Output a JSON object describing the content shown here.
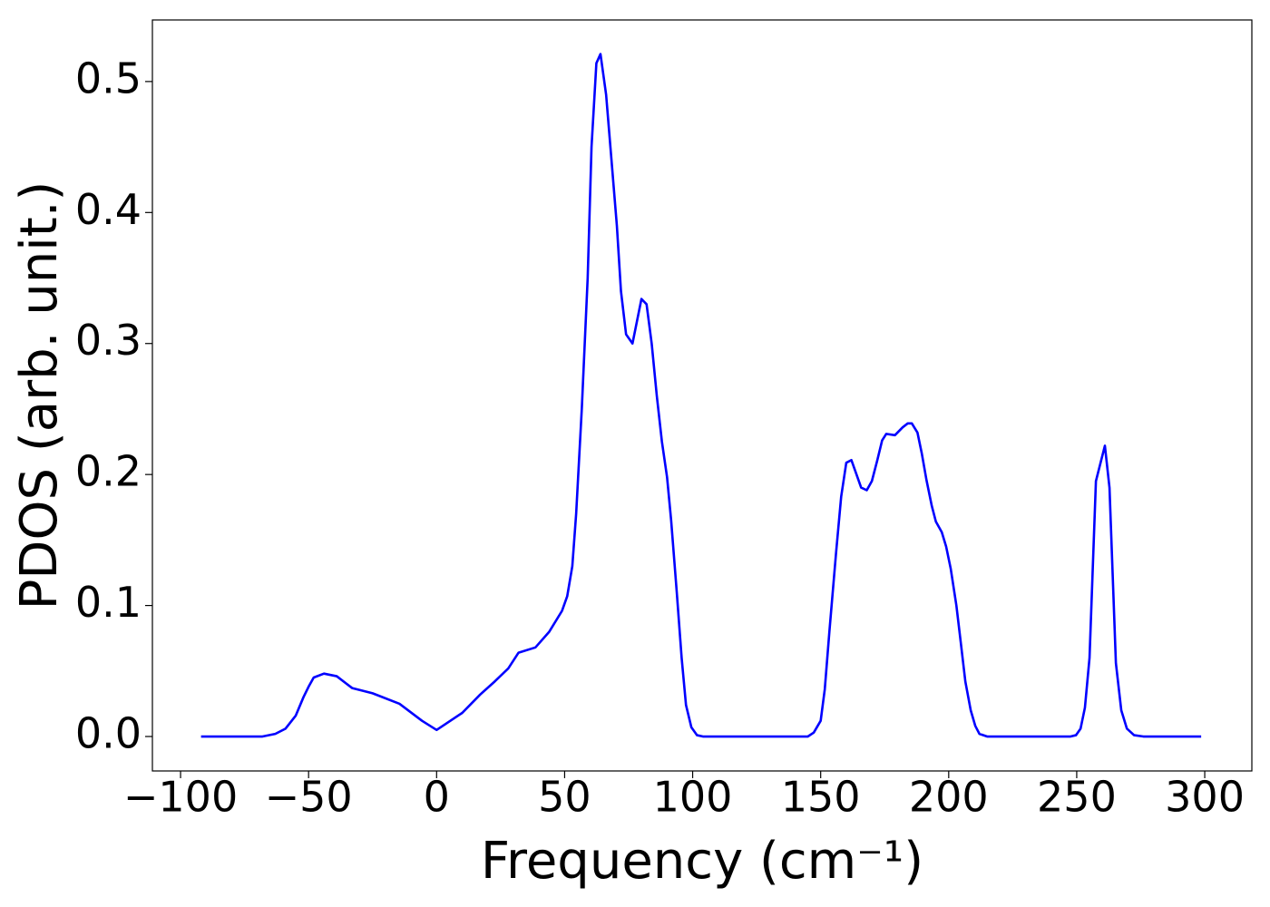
{
  "chart_data": {
    "type": "line",
    "xlabel": "Frequency (cm⁻¹)",
    "ylabel": "PDOS (arb. unit.)",
    "x": [
      -92,
      -68,
      -63,
      -59,
      -55,
      -52,
      -50,
      -48,
      -44,
      -39,
      -33,
      -25,
      -14.5,
      -5.7,
      0,
      10,
      17,
      22.7,
      28,
      32,
      38.6,
      44,
      49,
      51,
      53,
      54.5,
      56.7,
      59,
      60.5,
      62.4,
      64,
      66.2,
      68.3,
      70.4,
      72,
      74,
      76.5,
      80,
      82,
      84,
      86,
      88,
      90,
      91.6,
      93.8,
      95.7,
      97.4,
      99.5,
      101.7,
      104,
      145,
      147.3,
      150,
      151.6,
      153.4,
      156,
      158,
      160,
      162,
      164,
      165.8,
      168,
      170,
      172,
      174,
      175.6,
      179,
      182,
      184,
      185.6,
      187.8,
      189.5,
      191.3,
      193.4,
      195,
      197.3,
      199,
      200.8,
      203,
      204.7,
      206.5,
      208.6,
      210.4,
      212,
      215,
      247.6,
      249.7,
      251.5,
      253.2,
      255,
      257.5,
      261,
      262.8,
      265.3,
      267.4,
      269.6,
      272.4,
      276,
      298.6
    ],
    "series": [
      {
        "color": "#0000ff",
        "values": [
          0,
          0,
          0.002,
          0.006,
          0.016,
          0.03,
          0.038,
          0.045,
          0.048,
          0.046,
          0.037,
          0.033,
          0.025,
          0.012,
          0.005,
          0.018,
          0.032,
          0.042,
          0.052,
          0.064,
          0.068,
          0.08,
          0.096,
          0.107,
          0.13,
          0.17,
          0.25,
          0.35,
          0.45,
          0.514,
          0.521,
          0.49,
          0.44,
          0.39,
          0.34,
          0.307,
          0.3,
          0.334,
          0.33,
          0.3,
          0.26,
          0.225,
          0.198,
          0.165,
          0.11,
          0.06,
          0.024,
          0.007,
          0.001,
          0,
          0,
          0.003,
          0.012,
          0.036,
          0.08,
          0.14,
          0.183,
          0.209,
          0.211,
          0.2,
          0.19,
          0.188,
          0.195,
          0.21,
          0.226,
          0.231,
          0.23,
          0.236,
          0.239,
          0.239,
          0.232,
          0.216,
          0.196,
          0.176,
          0.164,
          0.156,
          0.145,
          0.128,
          0.1,
          0.072,
          0.042,
          0.02,
          0.008,
          0.002,
          0,
          0,
          0.001,
          0.006,
          0.022,
          0.06,
          0.195,
          0.222,
          0.19,
          0.056,
          0.02,
          0.006,
          0.001,
          0,
          0
        ]
      }
    ],
    "xlim": [
      -111,
      318.4
    ],
    "ylim": [
      -0.0263,
      0.547
    ],
    "xticks": [
      {
        "value": -100,
        "label": "−100"
      },
      {
        "value": -50,
        "label": "−50"
      },
      0,
      50,
      100,
      150,
      200,
      250,
      300
    ],
    "yticks": [
      {
        "value": 0,
        "label": "0.0"
      },
      0.1,
      0.2,
      0.3,
      0.4,
      0.5
    ]
  }
}
